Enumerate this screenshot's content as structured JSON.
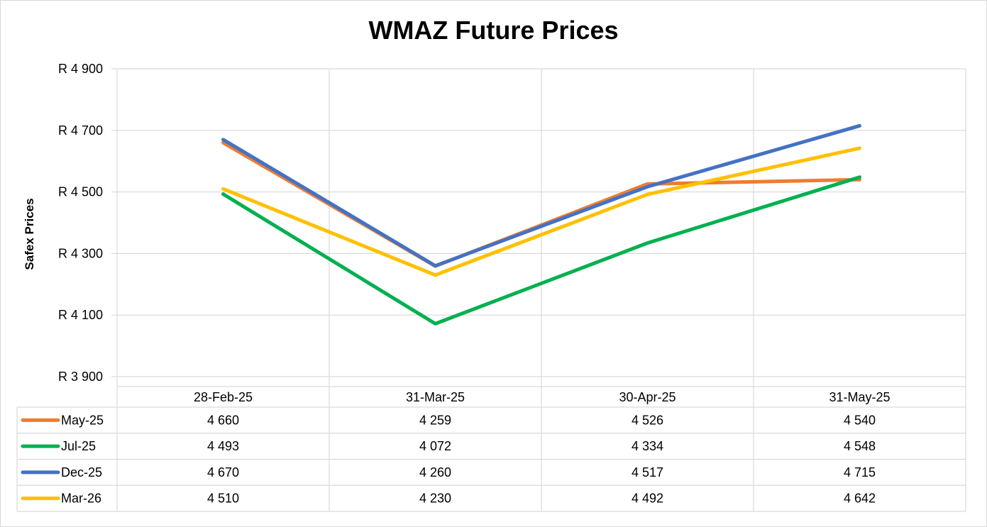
{
  "chart_data": {
    "type": "line",
    "title": "WMAZ Future Prices",
    "ylabel": "Safex Prices",
    "xlabel": "",
    "ylim": [
      3900,
      4900
    ],
    "y_ticks": [
      "R 3 900",
      "R 4 100",
      "R 4 300",
      "R 4 500",
      "R 4 700",
      "R 4 900"
    ],
    "y_tick_values": [
      3900,
      4100,
      4300,
      4500,
      4700,
      4900
    ],
    "categories": [
      "28-Feb-25",
      "31-Mar-25",
      "30-Apr-25",
      "31-May-25"
    ],
    "grid": true,
    "legend": "data-table-below",
    "series": [
      {
        "name": "May-25",
        "color": "#ED7D31",
        "values": [
          4660,
          4259,
          4526,
          4540
        ],
        "labels": [
          "4 660",
          "4 259",
          "4 526",
          "4 540"
        ]
      },
      {
        "name": "Jul-25",
        "color": "#00B050",
        "values": [
          4493,
          4072,
          4334,
          4548
        ],
        "labels": [
          "4 493",
          "4 072",
          "4 334",
          "4 548"
        ]
      },
      {
        "name": "Dec-25",
        "color": "#4472C4",
        "values": [
          4670,
          4260,
          4517,
          4715
        ],
        "labels": [
          "4 670",
          "4 260",
          "4 517",
          "4 715"
        ]
      },
      {
        "name": "Mar-26",
        "color": "#FFC000",
        "values": [
          4510,
          4230,
          4492,
          4642
        ],
        "labels": [
          "4 510",
          "4 230",
          "4 492",
          "4 642"
        ]
      }
    ]
  }
}
